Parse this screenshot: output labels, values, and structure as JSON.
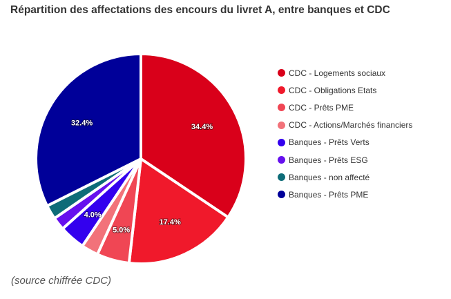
{
  "chart_data": {
    "type": "pie",
    "title": "Répartition des affectations des encours du livret A, entre banques et CDC",
    "start_angle": "top",
    "direction": "clockwise",
    "legend_position": "right",
    "slices": [
      {
        "label": "CDC - Logements sociaux",
        "value": 34.4,
        "data_label": "34.4%",
        "color": "#D9001A"
      },
      {
        "label": "CDC - Obligations Etats",
        "value": 17.4,
        "data_label": "17.4%",
        "color": "#F0192B"
      },
      {
        "label": "CDC - Prêts PME",
        "value": 5.0,
        "data_label": "5.0%",
        "color": "#F04654"
      },
      {
        "label": "CDC - Actions/Marchés financiers",
        "value": 2.6,
        "data_label": "",
        "color": "#F2727A"
      },
      {
        "label": "Banques - Prêts Verts",
        "value": 4.0,
        "data_label": "4.0%",
        "color": "#3300EE"
      },
      {
        "label": "Banques - Prêts ESG",
        "value": 2.0,
        "data_label": "",
        "color": "#6610EE"
      },
      {
        "label": "Banques - non affecté",
        "value": 2.2,
        "data_label": "",
        "color": "#0E6C78"
      },
      {
        "label": "Banques - Prêts PME",
        "value": 32.4,
        "data_label": "32.4%",
        "color": "#000099"
      }
    ]
  },
  "footer": {
    "source": "(source chiffrée CDC)"
  }
}
